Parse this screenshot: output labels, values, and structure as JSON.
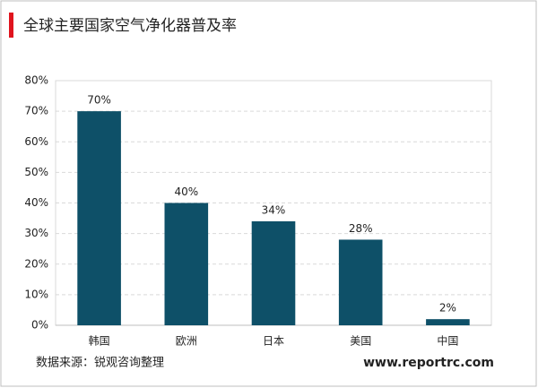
{
  "chart_data": {
    "type": "bar",
    "title": "全球主要国家空气净化器普及率",
    "categories": [
      "韩国",
      "欧洲",
      "日本",
      "美国",
      "中国"
    ],
    "values": [
      70,
      40,
      34,
      28,
      2
    ],
    "value_labels": [
      "70%",
      "40%",
      "34%",
      "28%",
      "2%"
    ],
    "color": "#0e5068",
    "ylim": [
      0,
      80
    ],
    "yticks": [
      {
        "value": 0,
        "label": "0%"
      },
      {
        "value": 10,
        "label": "10%"
      },
      {
        "value": 20,
        "label": "20%"
      },
      {
        "value": 30,
        "label": "30%"
      },
      {
        "value": 40,
        "label": "40%"
      },
      {
        "value": 50,
        "label": "50%"
      },
      {
        "value": 60,
        "label": "60%"
      },
      {
        "value": 70,
        "label": "70%"
      },
      {
        "value": 80,
        "label": "80%"
      }
    ],
    "grid": true,
    "source": "数据来源：锐观咨询整理",
    "website": "www.reportrc.com"
  }
}
